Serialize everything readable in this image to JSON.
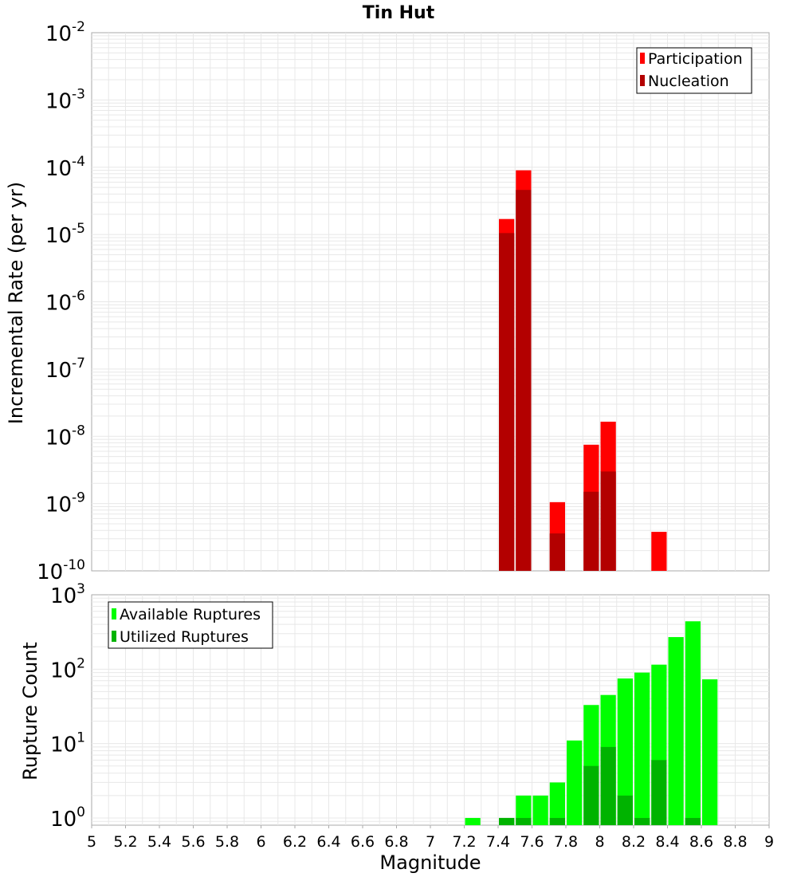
{
  "title": "Tin Hut",
  "colors": {
    "participation": "#ff0000",
    "nucleation": "#b30000",
    "available": "#00ff00",
    "utilized": "#00b300",
    "grid": "#e8e8e8",
    "axis": "#aaaaaa"
  },
  "chart_data": [
    {
      "type": "bar",
      "panel": "top",
      "ylabel": "Incremental Rate (per yr)",
      "yscale": "log",
      "ylim": [
        1e-10,
        0.01
      ],
      "y_tick_exponents": [
        "-10",
        "-9",
        "-8",
        "-7",
        "-6",
        "-5",
        "-4",
        "-3",
        "-2"
      ],
      "y_tick_base": "10",
      "xlim": [
        5,
        9
      ],
      "bin_width": 0.1,
      "grid": true,
      "legend_position": "top-right",
      "series": [
        {
          "name": "Participation",
          "color": "#ff0000",
          "x": [
            7.45,
            7.55,
            7.75,
            7.95,
            8.05,
            8.35
          ],
          "values": [
            1.7e-05,
            9e-05,
            1.05e-09,
            7.5e-09,
            1.65e-08,
            3.8e-10
          ]
        },
        {
          "name": "Nucleation",
          "color": "#b30000",
          "x": [
            7.45,
            7.55,
            7.75,
            7.95,
            8.05
          ],
          "values": [
            1.05e-05,
            4.6e-05,
            3.6e-10,
            1.5e-09,
            3e-09
          ]
        }
      ]
    },
    {
      "type": "bar",
      "panel": "bottom",
      "xlabel": "Magnitude",
      "ylabel": "Rupture Count",
      "yscale": "log",
      "ylim": [
        0.8,
        1000
      ],
      "y_tick_values": [
        1,
        10,
        100,
        1000
      ],
      "y_tick_exponents": [
        "0",
        "1",
        "2",
        "3"
      ],
      "y_tick_base": "10",
      "xlim": [
        5,
        9
      ],
      "x_ticks": [
        "5",
        "5.2",
        "5.4",
        "5.6",
        "5.8",
        "6",
        "6.2",
        "6.4",
        "6.6",
        "6.8",
        "7",
        "7.2",
        "7.4",
        "7.6",
        "7.8",
        "8",
        "8.2",
        "8.4",
        "8.6",
        "8.8",
        "9"
      ],
      "bin_width": 0.1,
      "grid": true,
      "legend_position": "top-left",
      "series": [
        {
          "name": "Available Ruptures",
          "color": "#00ff00",
          "x": [
            7.25,
            7.45,
            7.55,
            7.65,
            7.75,
            7.85,
            7.95,
            8.05,
            8.15,
            8.25,
            8.35,
            8.45,
            8.55,
            8.65
          ],
          "values": [
            1,
            1,
            2,
            2,
            3,
            11,
            33,
            45,
            75,
            90,
            115,
            270,
            440,
            73
          ]
        },
        {
          "name": "Utilized Ruptures",
          "color": "#00b300",
          "x": [
            7.45,
            7.55,
            7.75,
            7.95,
            8.05,
            8.15,
            8.25,
            8.35,
            8.55
          ],
          "values": [
            1,
            1,
            1,
            5,
            9,
            2,
            1,
            6,
            1
          ]
        }
      ]
    }
  ]
}
